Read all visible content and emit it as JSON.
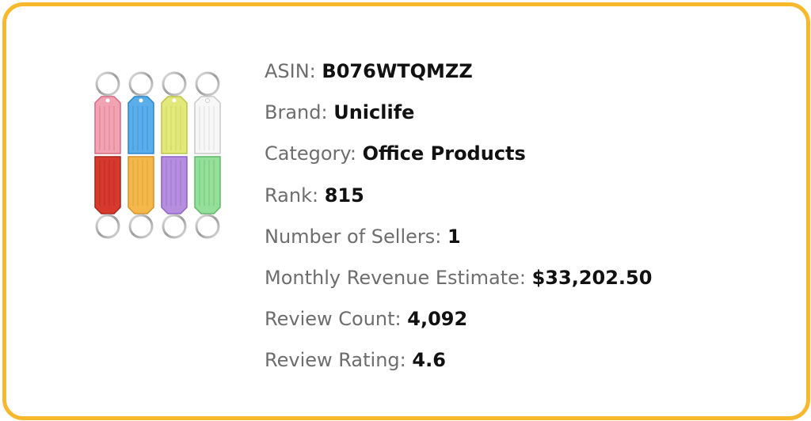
{
  "colors": {
    "border": "#f8b82c",
    "label": "#6d6d6d",
    "value": "#111111"
  },
  "product_image": {
    "icon": "keychain-tags-image"
  },
  "details": [
    {
      "label": "ASIN:",
      "value": "B076WTQMZZ"
    },
    {
      "label": "Brand:",
      "value": "Uniclife"
    },
    {
      "label": "Category:",
      "value": "Office Products"
    },
    {
      "label": "Rank:",
      "value": "815"
    },
    {
      "label": "Number of Sellers:",
      "value": "1"
    },
    {
      "label": "Monthly Revenue Estimate:",
      "value": "$33,202.50"
    },
    {
      "label": "Review Count:",
      "value": "4,092"
    },
    {
      "label": "Review Rating:",
      "value": "4.6"
    }
  ]
}
